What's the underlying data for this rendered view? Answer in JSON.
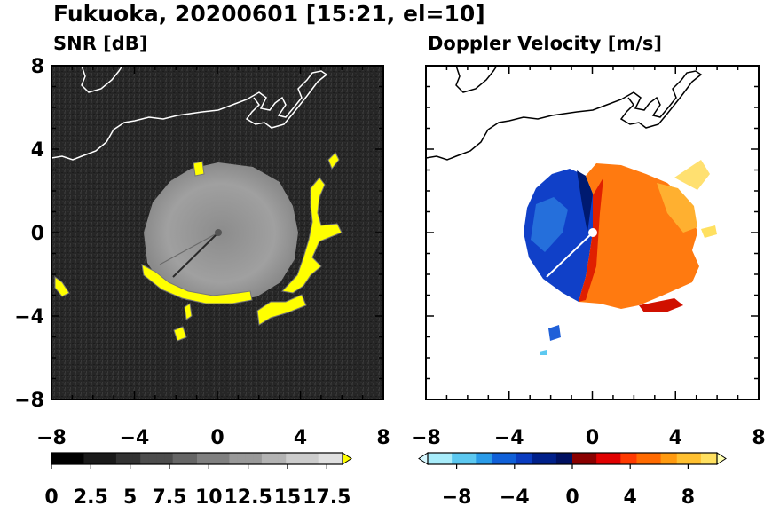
{
  "title": "Fukuoka, 20200601 [15:21, el=10]",
  "chart_data": [
    {
      "type": "heatmap",
      "panel_title": "SNR [dB]",
      "xlim": [
        -8,
        8
      ],
      "ylim": [
        -8,
        8
      ],
      "x_ticks": [
        "−8",
        "−4",
        "0",
        "4",
        "8"
      ],
      "y_ticks": [
        "8",
        "4",
        "0",
        "−4",
        "−8"
      ],
      "x_tick_values": [
        -8,
        -4,
        0,
        4,
        8
      ],
      "y_tick_values": [
        8,
        4,
        0,
        -4,
        -8
      ],
      "colorbar": {
        "range": [
          0,
          18.5
        ],
        "extend": "max",
        "labels": [
          "0",
          "2.5",
          "5",
          "7.5",
          "10",
          "12.5",
          "15",
          "17.5"
        ],
        "label_values": [
          0,
          2.5,
          5,
          7.5,
          10,
          12.5,
          15,
          17.5
        ],
        "colors": [
          "#000000",
          "#1a1a1a",
          "#333333",
          "#4d4d4d",
          "#666666",
          "#808080",
          "#999999",
          "#b3b3b3",
          "#cccccc",
          "#e0e0e0",
          "#ffff00"
        ]
      },
      "background_color": "#262626",
      "echo_color": "#9a9a9a",
      "strong_echo_color": "#ffff00",
      "coastline_color": "#ffffff"
    },
    {
      "type": "heatmap",
      "panel_title": "Doppler Velocity [m/s]",
      "xlim": [
        -8,
        8
      ],
      "ylim": [
        -8,
        8
      ],
      "x_ticks": [
        "−8",
        "−4",
        "0",
        "4",
        "8"
      ],
      "y_ticks": [
        "8",
        "4",
        "0",
        "−4",
        "−8"
      ],
      "x_tick_values": [
        -8,
        -4,
        0,
        4,
        8
      ],
      "y_tick_values": [
        8,
        4,
        0,
        -4,
        -8
      ],
      "colorbar": {
        "range": [
          -10,
          10
        ],
        "extend": "both",
        "labels": [
          "−8",
          "−4",
          "0",
          "4",
          "8"
        ],
        "label_values": [
          -8,
          -4,
          0,
          4,
          8
        ],
        "colors": [
          "#d8f8ff",
          "#a8ecfa",
          "#5cc8f0",
          "#2a9be8",
          "#1060d8",
          "#0a3cc0",
          "#00208a",
          "#001060",
          "#8a0000",
          "#e00000",
          "#ff3a00",
          "#ff6a00",
          "#ff9a10",
          "#ffc030",
          "#ffe060",
          "#ffffb0"
        ]
      },
      "background_color": "#ffffff",
      "approaching_color": "#1040c8",
      "receding_color": "#ff6a00",
      "coastline_color": "#000000"
    }
  ]
}
